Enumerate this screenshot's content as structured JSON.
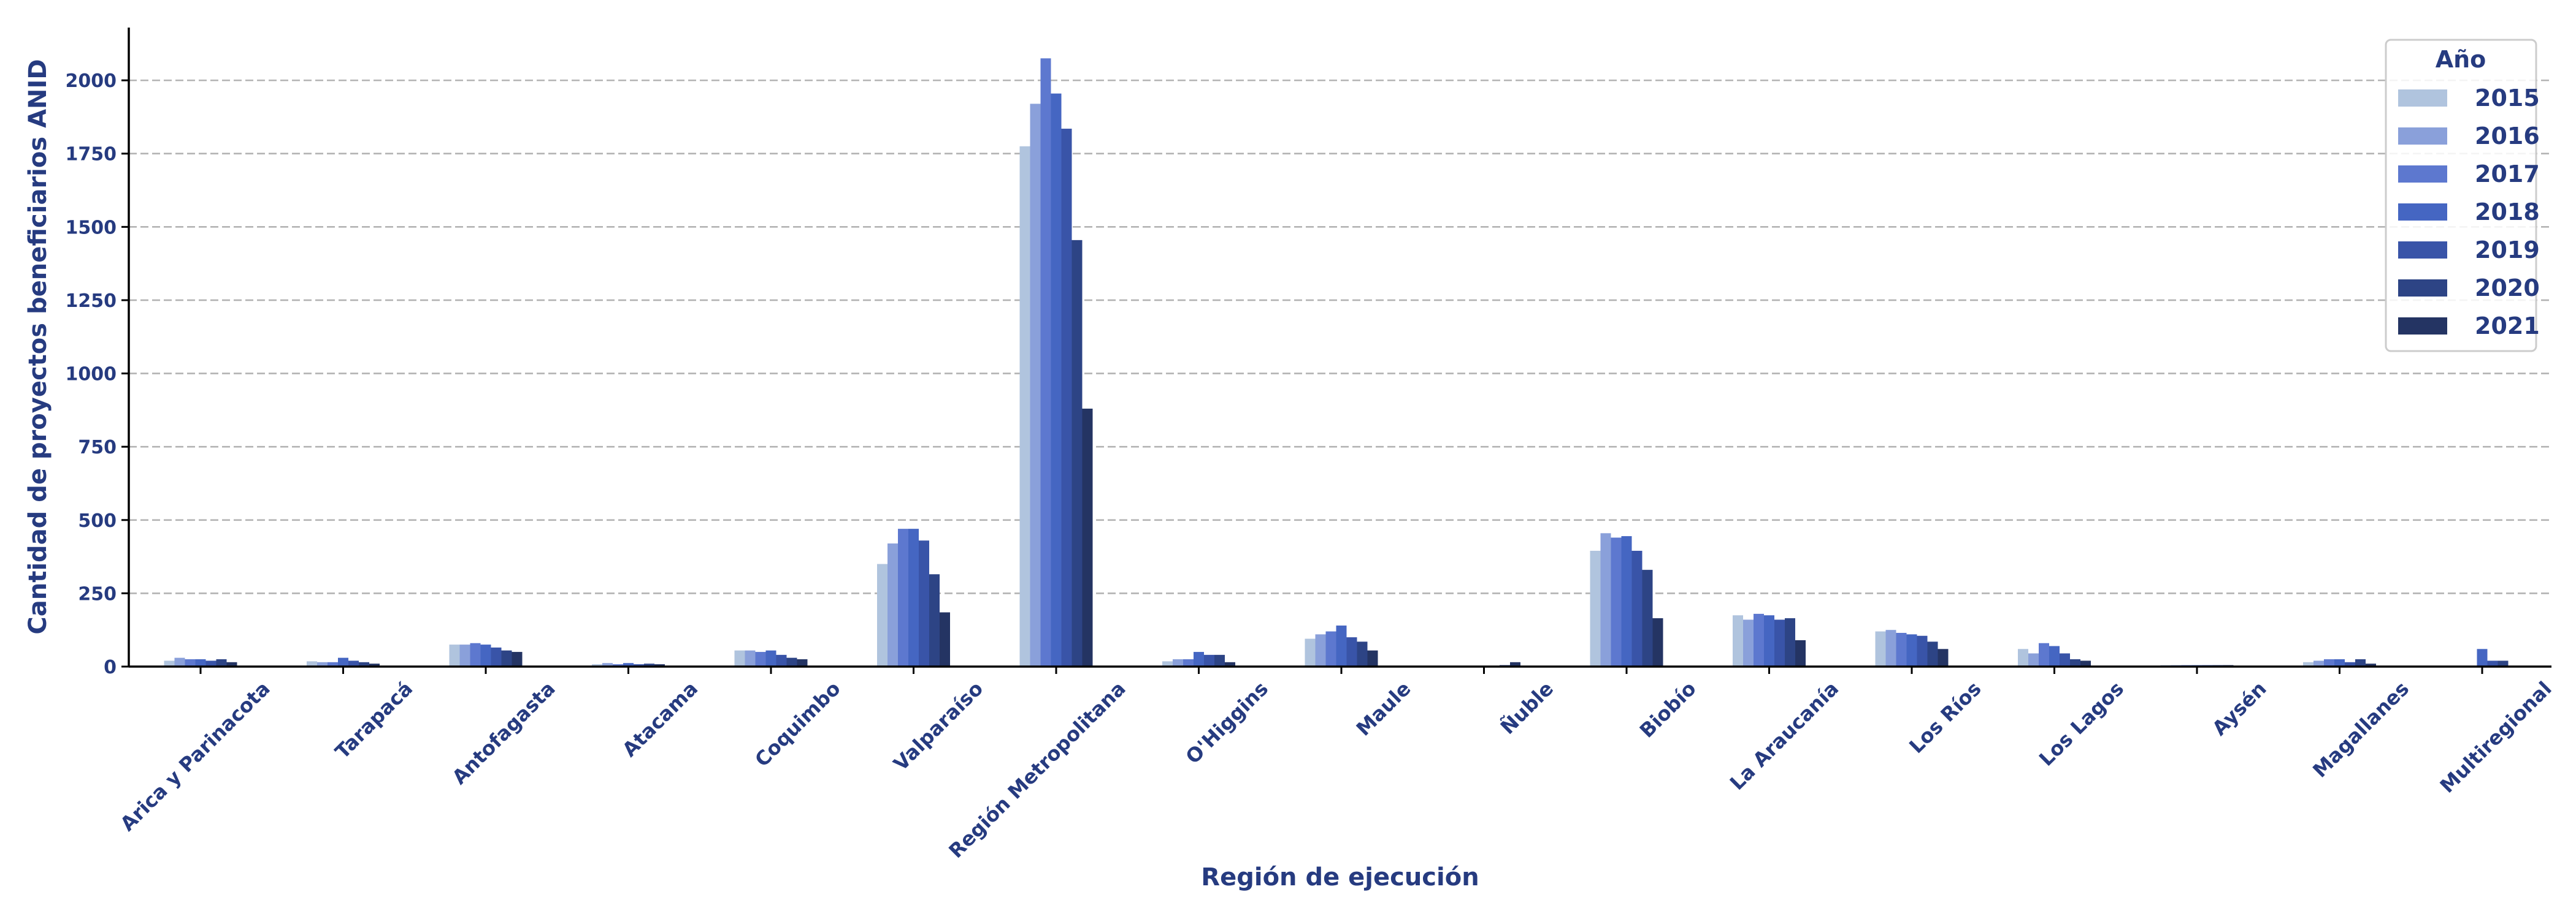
{
  "chart_data": {
    "type": "bar",
    "xlabel": "Región de ejecución",
    "ylabel": "Cantidad de proyectos beneficiarios ANID",
    "ylim": [
      0,
      2180
    ],
    "yticks": [
      0,
      250,
      500,
      750,
      1000,
      1250,
      1500,
      1750,
      2000
    ],
    "grid": "horizontal-dashed",
    "legend_title": "Año",
    "legend_position": "top-right",
    "categories": [
      "Arica y Parinacota",
      "Tarapacá",
      "Antofagasta",
      "Atacama",
      "Coquimbo",
      "Valparaíso",
      "Región Metropolitana",
      "O'Higgins",
      "Maule",
      "Ñuble",
      "Biobío",
      "La Araucanía",
      "Los Ríos",
      "Los Lagos",
      "Aysén",
      "Magallanes",
      "Multiregional"
    ],
    "series": [
      {
        "name": "2015",
        "color": "#b0c4de",
        "values": [
          20,
          18,
          75,
          8,
          55,
          350,
          1775,
          18,
          95,
          0,
          395,
          175,
          120,
          60,
          5,
          15,
          0
        ]
      },
      {
        "name": "2016",
        "color": "#8aa0da",
        "values": [
          30,
          15,
          75,
          12,
          55,
          420,
          1920,
          25,
          110,
          0,
          455,
          160,
          125,
          45,
          5,
          20,
          0
        ]
      },
      {
        "name": "2017",
        "color": "#5d78cf",
        "values": [
          25,
          15,
          80,
          8,
          50,
          470,
          2075,
          25,
          120,
          0,
          440,
          180,
          115,
          80,
          5,
          25,
          0
        ]
      },
      {
        "name": "2018",
        "color": "#4566c2",
        "values": [
          25,
          30,
          75,
          12,
          55,
          470,
          1955,
          50,
          140,
          0,
          445,
          175,
          110,
          70,
          5,
          25,
          60
        ]
      },
      {
        "name": "2019",
        "color": "#3954a8",
        "values": [
          20,
          20,
          65,
          8,
          40,
          430,
          1835,
          40,
          100,
          0,
          395,
          160,
          105,
          45,
          5,
          15,
          20
        ]
      },
      {
        "name": "2020",
        "color": "#2d4485",
        "values": [
          25,
          15,
          55,
          10,
          30,
          315,
          1455,
          40,
          85,
          5,
          330,
          165,
          85,
          25,
          5,
          25,
          20
        ]
      },
      {
        "name": "2021",
        "color": "#243463",
        "values": [
          15,
          10,
          50,
          8,
          25,
          185,
          880,
          15,
          55,
          15,
          165,
          90,
          60,
          20,
          5,
          10,
          0
        ]
      }
    ]
  }
}
